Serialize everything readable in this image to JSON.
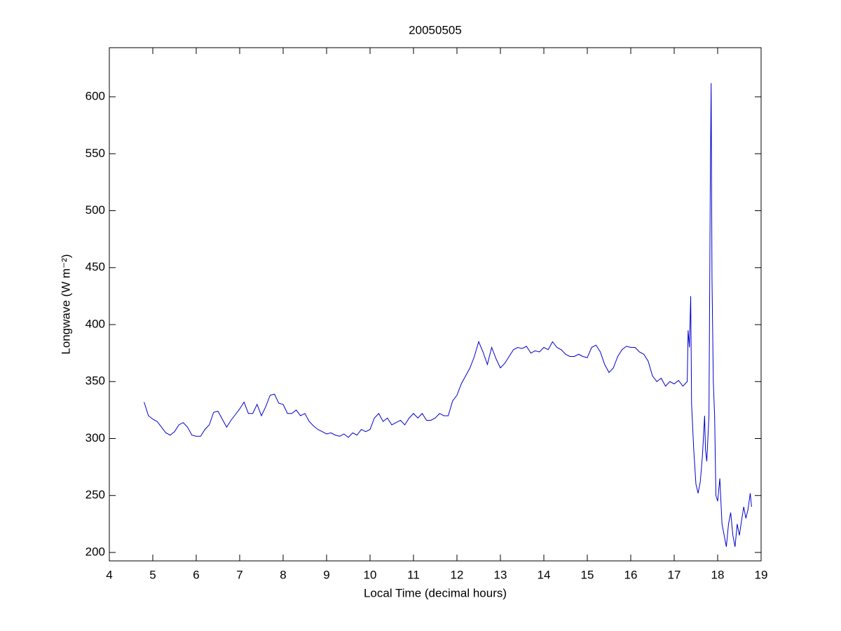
{
  "chart_data": {
    "type": "line",
    "title": "20050505",
    "x_label": "Local Time (decimal hours)",
    "y_label": "Longwave (W m⁻²)",
    "x": [
      4.8,
      4.9,
      5.0,
      5.1,
      5.2,
      5.3,
      5.4,
      5.5,
      5.6,
      5.7,
      5.8,
      5.9,
      6.0,
      6.1,
      6.2,
      6.3,
      6.4,
      6.5,
      6.6,
      6.7,
      6.8,
      6.9,
      7.0,
      7.1,
      7.2,
      7.3,
      7.4,
      7.5,
      7.6,
      7.7,
      7.8,
      7.9,
      8.0,
      8.1,
      8.2,
      8.3,
      8.4,
      8.5,
      8.6,
      8.7,
      8.8,
      8.9,
      9.0,
      9.1,
      9.2,
      9.3,
      9.4,
      9.5,
      9.6,
      9.7,
      9.8,
      9.9,
      10.0,
      10.1,
      10.2,
      10.3,
      10.4,
      10.5,
      10.6,
      10.7,
      10.8,
      10.9,
      11.0,
      11.1,
      11.2,
      11.3,
      11.4,
      11.5,
      11.6,
      11.7,
      11.8,
      11.9,
      12.0,
      12.1,
      12.2,
      12.3,
      12.4,
      12.5,
      12.6,
      12.7,
      12.8,
      12.9,
      13.0,
      13.1,
      13.2,
      13.3,
      13.4,
      13.5,
      13.6,
      13.7,
      13.8,
      13.9,
      14.0,
      14.1,
      14.2,
      14.3,
      14.4,
      14.5,
      14.6,
      14.7,
      14.8,
      14.9,
      15.0,
      15.1,
      15.2,
      15.3,
      15.4,
      15.5,
      15.6,
      15.7,
      15.8,
      15.9,
      16.0,
      16.1,
      16.2,
      16.3,
      16.4,
      16.5,
      16.6,
      16.7,
      16.8,
      16.9,
      17.0,
      17.1,
      17.2,
      17.3,
      17.32,
      17.35,
      17.38,
      17.4,
      17.45,
      17.5,
      17.55,
      17.6,
      17.65,
      17.7,
      17.72,
      17.75,
      17.8,
      17.83,
      17.85,
      17.87,
      17.9,
      17.93,
      17.96,
      18.0,
      18.05,
      18.1,
      18.15,
      18.2,
      18.25,
      18.3,
      18.35,
      18.4,
      18.45,
      18.5,
      18.55,
      18.6,
      18.65,
      18.7,
      18.75,
      18.78
    ],
    "series": [
      {
        "color": "#0000cc",
        "values": [
          332,
          320,
          317,
          315,
          310,
          305,
          303,
          306,
          312,
          314,
          310,
          303,
          302,
          302,
          308,
          312,
          323,
          324,
          317,
          310,
          316,
          321,
          326,
          332,
          322,
          322,
          330,
          320,
          328,
          338,
          339,
          331,
          330,
          322,
          322,
          325,
          320,
          322,
          315,
          311,
          308,
          306,
          304,
          305,
          303,
          302,
          304,
          301,
          305,
          303,
          308,
          306,
          308,
          318,
          322,
          315,
          318,
          312,
          314,
          316,
          312,
          318,
          322,
          318,
          322,
          316,
          316,
          318,
          322,
          320,
          320,
          333,
          338,
          348,
          355,
          362,
          372,
          385,
          376,
          365,
          380,
          370,
          362,
          366,
          372,
          378,
          380,
          379,
          381,
          375,
          377,
          376,
          380,
          378,
          385,
          380,
          378,
          374,
          372,
          372,
          374,
          372,
          371,
          380,
          382,
          376,
          365,
          358,
          362,
          372,
          378,
          381,
          380,
          380,
          376,
          374,
          368,
          355,
          350,
          353,
          346,
          350,
          348,
          351,
          346,
          350,
          395,
          380,
          425,
          330,
          290,
          260,
          252,
          262,
          285,
          320,
          290,
          280,
          320,
          520,
          612,
          440,
          350,
          320,
          250,
          245,
          265,
          225,
          215,
          205,
          225,
          235,
          215,
          205,
          225,
          215,
          228,
          240,
          230,
          238,
          252,
          240
        ]
      }
    ],
    "xlim": [
      4,
      19
    ],
    "ylim": [
      192.6,
      643.1
    ],
    "xticks": [
      4,
      5,
      6,
      7,
      8,
      9,
      10,
      11,
      12,
      13,
      14,
      15,
      16,
      17,
      18,
      19
    ],
    "yticks": [
      200,
      250,
      300,
      350,
      400,
      450,
      500,
      550,
      600
    ]
  }
}
